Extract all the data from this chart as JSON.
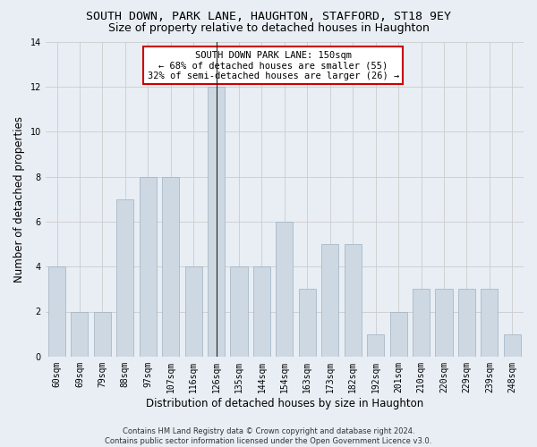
{
  "title": "SOUTH DOWN, PARK LANE, HAUGHTON, STAFFORD, ST18 9EY",
  "subtitle": "Size of property relative to detached houses in Haughton",
  "xlabel": "Distribution of detached houses by size in Haughton",
  "ylabel": "Number of detached properties",
  "categories": [
    "60sqm",
    "69sqm",
    "79sqm",
    "88sqm",
    "97sqm",
    "107sqm",
    "116sqm",
    "126sqm",
    "135sqm",
    "144sqm",
    "154sqm",
    "163sqm",
    "173sqm",
    "182sqm",
    "192sqm",
    "201sqm",
    "210sqm",
    "220sqm",
    "229sqm",
    "239sqm",
    "248sqm"
  ],
  "values": [
    4,
    2,
    2,
    7,
    8,
    8,
    4,
    12,
    4,
    4,
    6,
    3,
    5,
    5,
    1,
    2,
    3,
    3,
    3,
    3,
    1
  ],
  "bar_color": "#cdd8e3",
  "bar_edge_color": "#9eb0c0",
  "highlight_index": 7,
  "highlight_line_color": "#222222",
  "annotation_text": "SOUTH DOWN PARK LANE: 150sqm\n← 68% of detached houses are smaller (55)\n32% of semi-detached houses are larger (26) →",
  "annotation_box_color": "#ffffff",
  "annotation_box_edge_color": "#cc0000",
  "footer_line1": "Contains HM Land Registry data © Crown copyright and database right 2024.",
  "footer_line2": "Contains public sector information licensed under the Open Government Licence v3.0.",
  "ylim": [
    0,
    14
  ],
  "yticks": [
    0,
    2,
    4,
    6,
    8,
    10,
    12,
    14
  ],
  "grid_color": "#cccccc",
  "background_color": "#e8eef4",
  "title_fontsize": 9.5,
  "subtitle_fontsize": 9,
  "axis_label_fontsize": 8.5,
  "tick_fontsize": 7,
  "annotation_fontsize": 7.5,
  "footer_fontsize": 6
}
